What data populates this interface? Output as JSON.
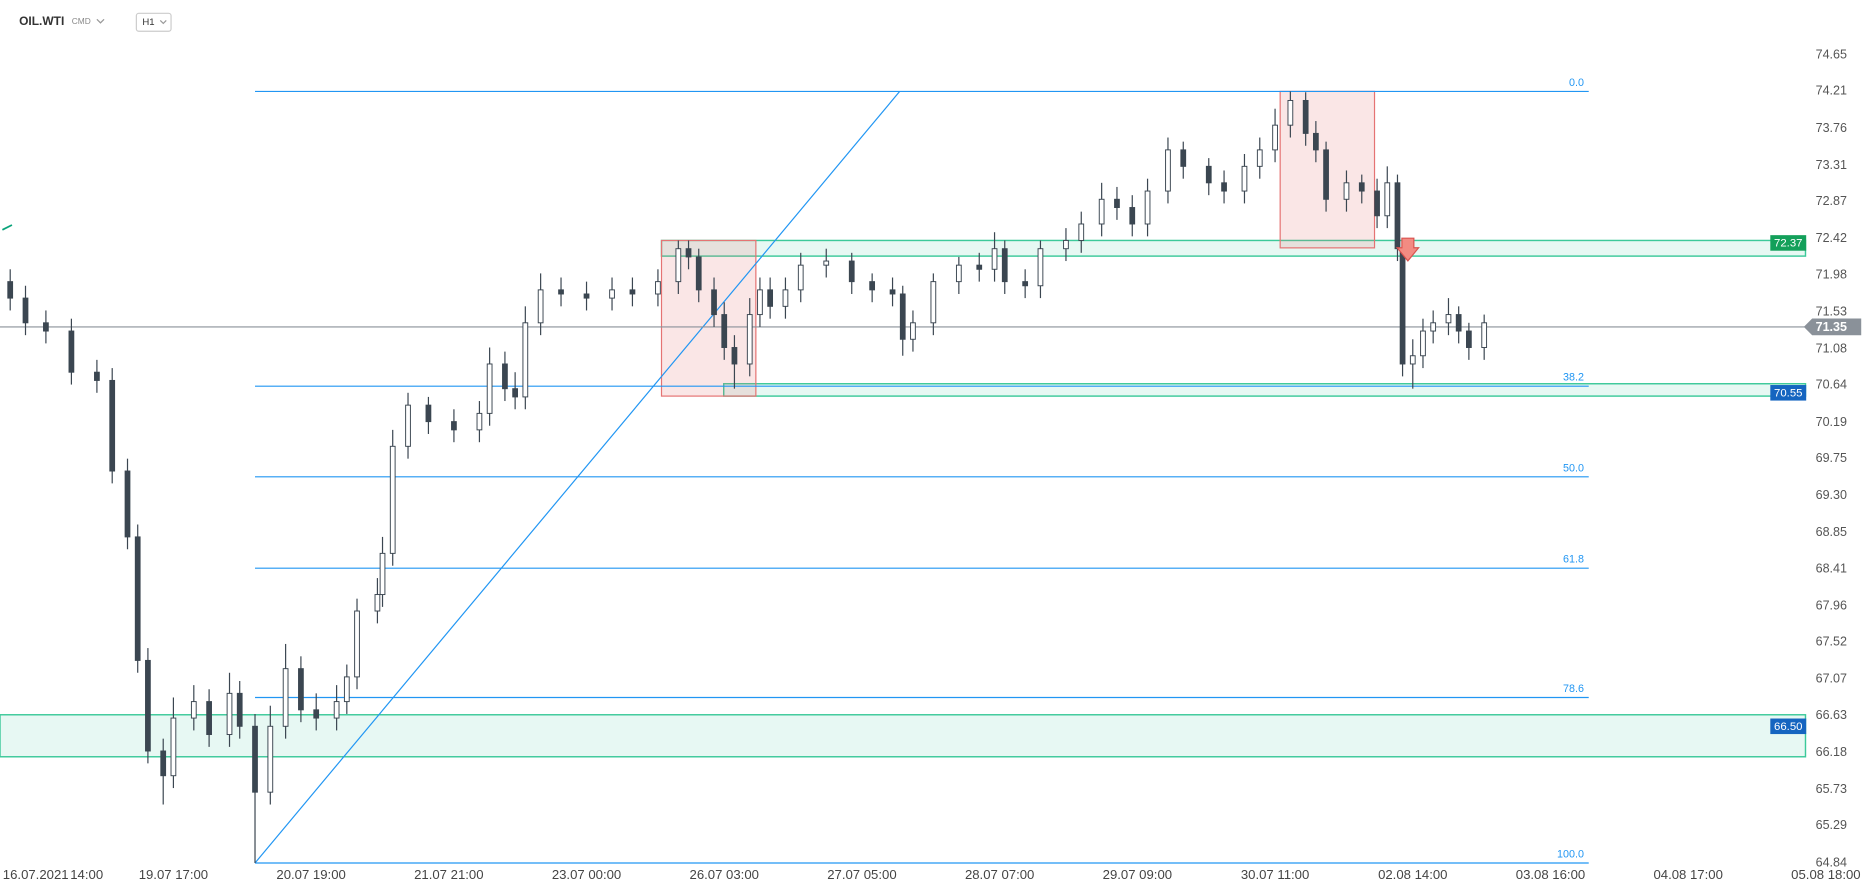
{
  "toolbar": {
    "symbol": "OIL.WTI",
    "market": "CMD",
    "interval": "H1"
  },
  "chart_data": {
    "type": "candlestick",
    "x": [
      2,
      5,
      9,
      14,
      19,
      22,
      25,
      27,
      29,
      32,
      34,
      38,
      41,
      45,
      47,
      50,
      53,
      56,
      59,
      62,
      66,
      68,
      70,
      74,
      75,
      77,
      80,
      84,
      89,
      94,
      96,
      99,
      101,
      103,
      106,
      110,
      115,
      120,
      124,
      129,
      133,
      135,
      137,
      140,
      142,
      144,
      147,
      149,
      151,
      154,
      157,
      162,
      167,
      171,
      175,
      177,
      179,
      183,
      188,
      192,
      195,
      197,
      201,
      204,
      209,
      212,
      216,
      219,
      222,
      225,
      229,
      232,
      237,
      240,
      244,
      247,
      250,
      253,
      256,
      258,
      260,
      264,
      267,
      270,
      272,
      274,
      275,
      277,
      279,
      281,
      284,
      286,
      288,
      291
    ],
    "open": [
      71.9,
      71.7,
      71.4,
      71.3,
      70.8,
      70.7,
      69.6,
      68.8,
      67.3,
      66.2,
      65.9,
      66.6,
      66.8,
      66.4,
      66.9,
      66.5,
      65.7,
      66.5,
      67.2,
      66.7,
      66.6,
      66.8,
      67.1,
      67.9,
      68.1,
      68.6,
      69.9,
      70.4,
      70.2,
      70.1,
      70.3,
      70.9,
      70.6,
      70.5,
      71.4,
      71.8,
      71.75,
      71.7,
      71.8,
      71.75,
      71.9,
      72.3,
      72.2,
      71.8,
      71.5,
      71.1,
      70.9,
      71.5,
      71.8,
      71.6,
      71.8,
      72.1,
      72.15,
      71.9,
      71.8,
      71.75,
      71.2,
      71.4,
      71.9,
      72.1,
      72.05,
      72.3,
      71.9,
      71.85,
      72.3,
      72.4,
      72.6,
      72.9,
      72.8,
      72.6,
      73.0,
      73.5,
      73.3,
      73.1,
      73.0,
      73.3,
      73.5,
      73.8,
      74.1,
      73.7,
      73.5,
      72.9,
      73.1,
      73.0,
      72.7,
      73.1,
      72.3,
      70.9,
      71.0,
      71.3,
      71.4,
      71.5,
      71.3,
      71.1
    ],
    "high": [
      72.05,
      71.85,
      71.55,
      71.45,
      70.95,
      70.85,
      69.75,
      68.95,
      67.45,
      66.35,
      66.85,
      67.0,
      66.95,
      67.15,
      67.05,
      66.65,
      66.75,
      67.5,
      67.35,
      66.9,
      67.0,
      67.25,
      68.05,
      68.3,
      68.8,
      70.1,
      70.55,
      70.5,
      70.35,
      70.45,
      71.1,
      71.05,
      70.8,
      71.6,
      72.0,
      71.95,
      71.9,
      71.95,
      71.95,
      72.05,
      72.4,
      72.4,
      72.3,
      71.95,
      71.65,
      71.25,
      71.7,
      71.95,
      71.95,
      71.95,
      72.25,
      72.3,
      72.25,
      72.0,
      71.95,
      71.85,
      71.55,
      72.0,
      72.2,
      72.25,
      72.5,
      72.4,
      72.05,
      72.4,
      72.55,
      72.75,
      73.1,
      73.05,
      72.95,
      73.15,
      73.65,
      73.6,
      73.4,
      73.25,
      73.45,
      73.65,
      74.0,
      74.21,
      74.2,
      73.85,
      73.6,
      73.25,
      73.2,
      73.15,
      73.3,
      73.2,
      72.4,
      71.2,
      71.45,
      71.55,
      71.7,
      71.6,
      71.4,
      71.5
    ],
    "low": [
      71.55,
      71.25,
      71.15,
      70.65,
      70.55,
      69.45,
      68.65,
      67.15,
      66.05,
      65.55,
      65.75,
      66.45,
      66.25,
      66.25,
      66.35,
      64.84,
      65.55,
      66.35,
      66.55,
      66.45,
      66.45,
      66.65,
      66.95,
      67.75,
      67.95,
      68.45,
      69.75,
      70.05,
      69.95,
      69.95,
      70.15,
      70.45,
      70.35,
      70.35,
      71.25,
      71.6,
      71.55,
      71.55,
      71.6,
      71.6,
      71.75,
      72.05,
      71.65,
      71.35,
      70.95,
      70.6,
      70.75,
      71.35,
      71.45,
      71.45,
      71.65,
      71.95,
      71.75,
      71.65,
      71.6,
      71.0,
      71.05,
      71.25,
      71.75,
      71.9,
      71.9,
      71.75,
      71.7,
      71.7,
      72.15,
      72.25,
      72.45,
      72.65,
      72.45,
      72.45,
      72.85,
      73.15,
      72.95,
      72.85,
      72.85,
      73.15,
      73.35,
      73.65,
      73.55,
      73.35,
      72.75,
      72.75,
      72.85,
      72.55,
      72.55,
      72.15,
      70.75,
      70.6,
      70.85,
      71.15,
      71.25,
      71.15,
      70.95,
      70.95
    ],
    "close": [
      71.7,
      71.4,
      71.3,
      70.8,
      70.7,
      69.6,
      68.8,
      67.3,
      66.2,
      65.9,
      66.6,
      66.8,
      66.4,
      66.9,
      66.5,
      65.7,
      66.5,
      67.2,
      66.7,
      66.6,
      66.8,
      67.1,
      67.9,
      68.1,
      68.6,
      69.9,
      70.4,
      70.2,
      70.1,
      70.3,
      70.9,
      70.6,
      70.5,
      71.4,
      71.8,
      71.75,
      71.7,
      71.8,
      71.75,
      71.9,
      72.3,
      72.2,
      71.8,
      71.5,
      71.1,
      70.9,
      71.5,
      71.8,
      71.6,
      71.8,
      72.1,
      72.15,
      71.9,
      71.8,
      71.75,
      71.2,
      71.4,
      71.9,
      72.1,
      72.05,
      72.3,
      71.9,
      71.85,
      72.3,
      72.4,
      72.6,
      72.9,
      72.8,
      72.6,
      73.0,
      73.5,
      73.3,
      73.1,
      73.0,
      73.3,
      73.5,
      73.8,
      74.1,
      73.7,
      73.5,
      72.9,
      73.1,
      73.0,
      72.7,
      73.1,
      72.3,
      70.9,
      71.0,
      71.3,
      71.4,
      71.5,
      71.3,
      71.1,
      71.4
    ],
    "up_color": "#ffffff",
    "down_color": "#3b4651",
    "xlim": [
      0,
      360
    ],
    "xticks": [
      {
        "value": 7,
        "label": "16.07.2021"
      },
      {
        "value": 17,
        "label": "14:00"
      },
      {
        "value": 34,
        "label": "19.07 17:00"
      },
      {
        "value": 61,
        "label": "20.07 19:00"
      },
      {
        "value": 88,
        "label": "21.07 21:00"
      },
      {
        "value": 115,
        "label": "23.07 00:00"
      },
      {
        "value": 142,
        "label": "26.07 03:00"
      },
      {
        "value": 169,
        "label": "27.07 05:00"
      },
      {
        "value": 196,
        "label": "28.07 07:00"
      },
      {
        "value": 223,
        "label": "29.07 09:00"
      },
      {
        "value": 250,
        "label": "30.07 11:00"
      },
      {
        "value": 277,
        "label": "02.08 14:00"
      },
      {
        "value": 304,
        "label": "03.08 16:00"
      },
      {
        "value": 331,
        "label": "04.08 17:00"
      },
      {
        "value": 358,
        "label": "05.08 18:00"
      }
    ],
    "ylim": [
      64.7,
      74.8
    ],
    "yticks": [
      74.65,
      74.21,
      73.76,
      73.31,
      72.87,
      72.42,
      71.98,
      71.53,
      71.08,
      70.64,
      70.19,
      69.75,
      {
        "value": 69.3,
        "label": "69.30"
      },
      68.85,
      68.41,
      67.96,
      67.52,
      67.07,
      66.63,
      66.18,
      65.73,
      65.29,
      64.84
    ],
    "fibonacci": {
      "color": "#2196f3",
      "x": [
        50,
        311.5
      ],
      "levels": [
        {
          "label": "0.0",
          "price": 74.21
        },
        {
          "label": "38.2",
          "price": 70.63
        },
        {
          "label": "50.0",
          "price": 69.53
        },
        {
          "label": "61.8",
          "price": 68.42
        },
        {
          "label": "78.6",
          "price": 66.85
        },
        {
          "label": "100.0",
          "price": 64.84
        }
      ]
    },
    "trendline": {
      "color": "#2196f3",
      "x": [
        50,
        176.4
      ],
      "y": [
        64.84,
        74.21
      ]
    },
    "boxes": {
      "color": "#e57373",
      "items": [
        {
          "x": [
            129.7,
            148.2
          ],
          "y": [
            70.51,
            72.4
          ]
        },
        {
          "x": [
            251,
            269.5
          ],
          "y": [
            72.31,
            74.21
          ]
        }
      ]
    },
    "zones": {
      "color": "#3cc99a",
      "items": [
        {
          "x": [
            129.7,
            354
          ],
          "y": [
            72.21,
            72.4
          ],
          "label": 72.37,
          "label_color": "#13a05a"
        },
        {
          "x": [
            141.9,
            354
          ],
          "y": [
            70.51,
            70.66
          ],
          "label": 70.55,
          "label_color": "#1565c0"
        },
        {
          "x": [
            0,
            354
          ],
          "y": [
            66.13,
            66.64
          ],
          "label": {
            "value": 66.5,
            "label": "66.50"
          },
          "label_color": "#1565c0"
        }
      ]
    },
    "last_price": {
      "value": 71.35,
      "color": "#8a9199"
    }
  }
}
